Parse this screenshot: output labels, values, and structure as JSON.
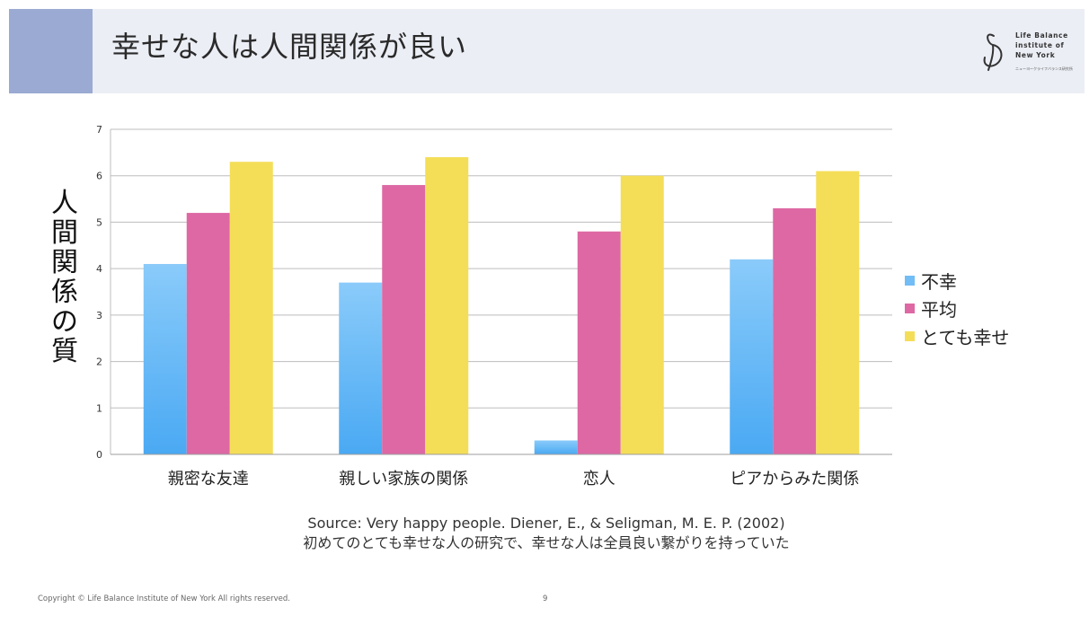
{
  "header": {
    "title": "幸せな人は人間関係が良い",
    "logo_text": "Life Balance\ninstitute of\nNew York",
    "logo_tagline": "ニューヨークライフバランス研究所"
  },
  "source": {
    "line1": "Source: Very happy people. Diener, E., & Seligman, M. E. P. (2002)",
    "line2": "初めてのとても幸せな人の研究で、幸せな人は全員良い繋がりを持っていた"
  },
  "footer": {
    "copyright": "Copyright © Life Balance Institute of New York All rights reserved.",
    "page_number": "9"
  },
  "chart_data": {
    "type": "bar",
    "title": "",
    "xlabel": "",
    "ylabel": "人間関係の質",
    "ylim": [
      0,
      7
    ],
    "yticks": [
      "0",
      "1",
      "2",
      "3",
      "4",
      "5",
      "6",
      "7"
    ],
    "grid": true,
    "legend_position": "right",
    "categories": [
      "親密な友達",
      "親しい家族の関係",
      "恋人",
      "ピアからみた関係"
    ],
    "series": [
      {
        "name": "不幸",
        "color": "#72bdf5",
        "values": [
          4.1,
          3.7,
          0.3,
          4.2
        ]
      },
      {
        "name": "平均",
        "color": "#dd68a4",
        "values": [
          5.2,
          5.8,
          4.8,
          5.3
        ]
      },
      {
        "name": "とても幸せ",
        "color": "#f4de58",
        "values": [
          6.3,
          6.4,
          6.0,
          6.1
        ]
      }
    ]
  }
}
